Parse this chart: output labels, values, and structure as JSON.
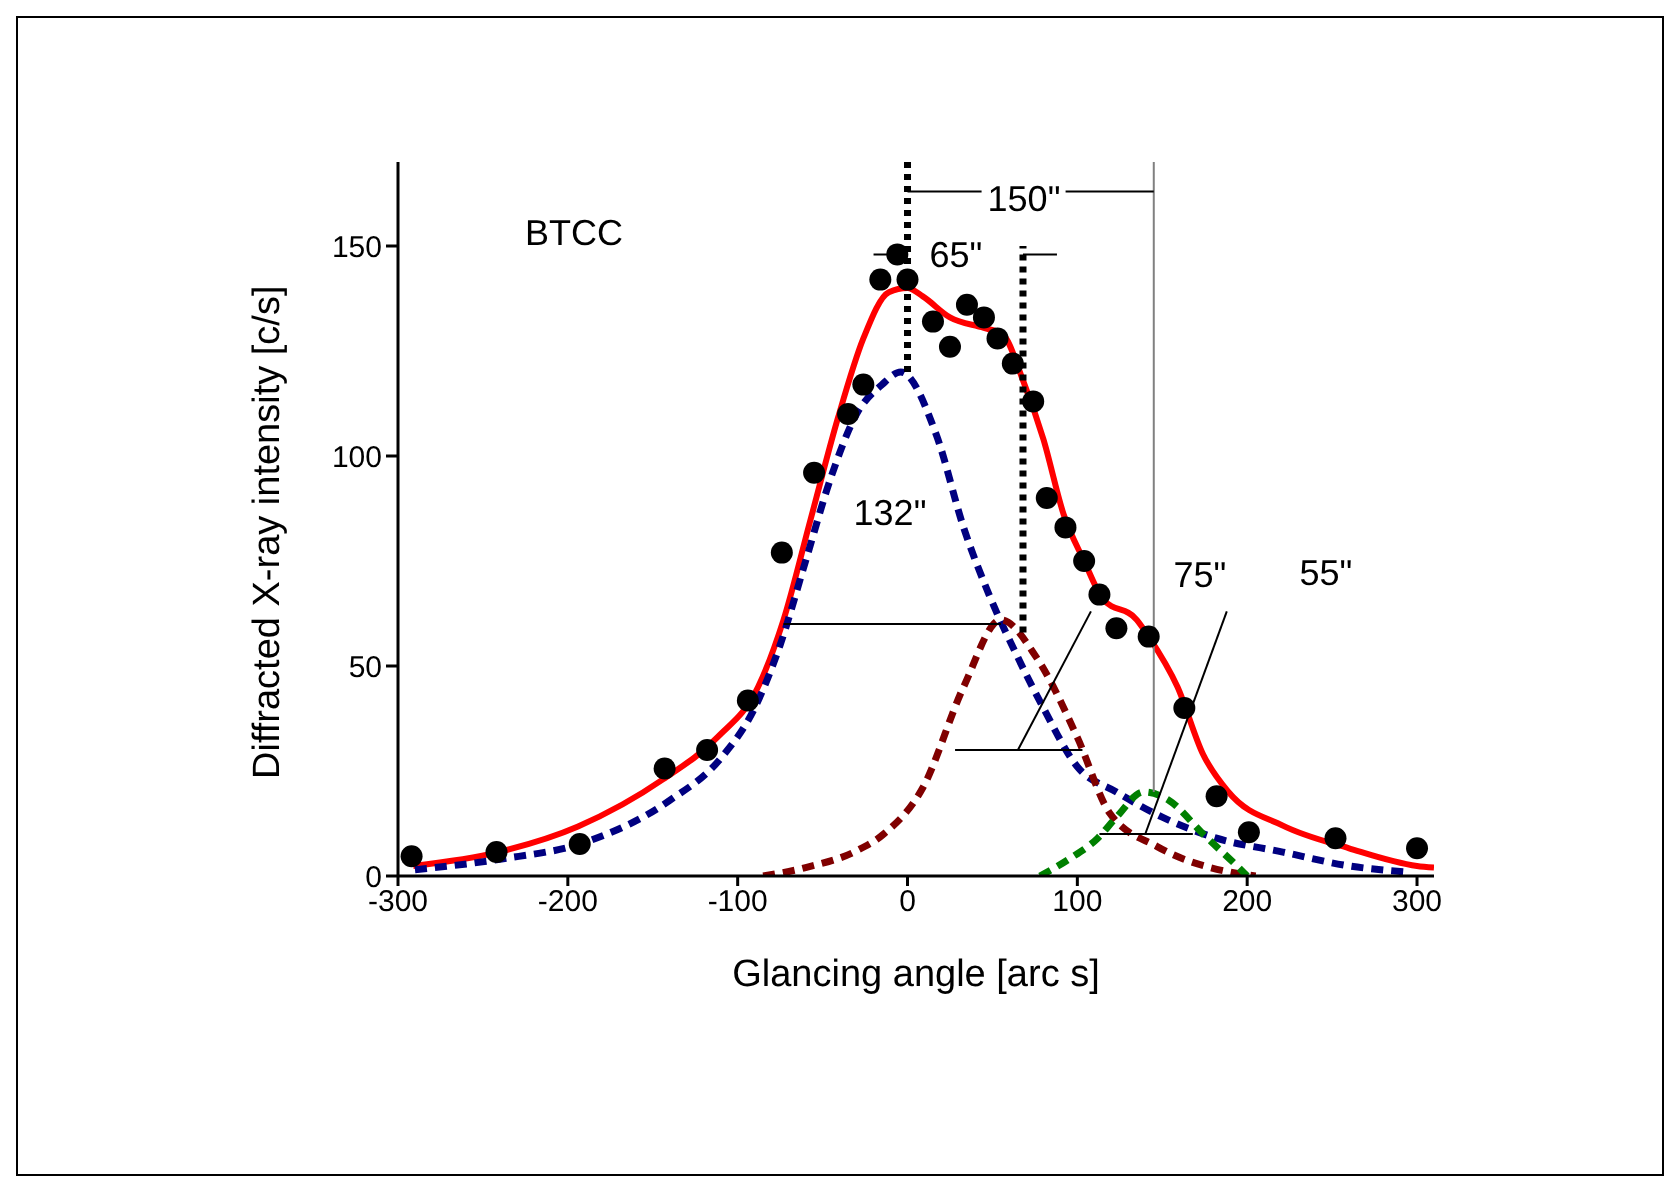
{
  "chart_data": {
    "type": "scatter",
    "xlabel": "Glancing angle [arc s]",
    "ylabel": "Diffracted X-ray intensity [c/s]",
    "xlim": [
      -300,
      310
    ],
    "xticks": [
      -300,
      -200,
      -100,
      0,
      100,
      200,
      300
    ],
    "ylim": [
      0,
      170
    ],
    "yticks": [
      0,
      50,
      100,
      150
    ],
    "grid": false,
    "legend": false,
    "annotations": [
      "BTCC",
      "150\"",
      "65\"",
      "132\"",
      "75\"",
      "55\""
    ],
    "series": [
      {
        "marker": "circle",
        "color": "#000000",
        "x": [
          -292,
          -242,
          -193,
          -143,
          -118,
          -94,
          -74,
          -55,
          -35,
          -26,
          -16,
          -6,
          0,
          15,
          25,
          35,
          45,
          53,
          62,
          74,
          82,
          93,
          104,
          113,
          123,
          142,
          163,
          182,
          201,
          252,
          300
        ],
        "values": [
          4.7,
          5.7,
          7.6,
          25.6,
          30,
          41.8,
          77,
          96,
          110,
          117,
          142,
          148,
          142,
          132,
          126,
          136,
          133,
          128,
          122,
          113,
          90,
          83,
          75,
          67,
          59,
          57,
          40,
          19,
          10.4,
          9,
          6.6
        ]
      },
      {
        "type": "line",
        "marker": "none",
        "line_style": "solid",
        "color": "#ff0000",
        "x": [
          -291,
          -241,
          -194,
          -144,
          -112,
          -88,
          -73,
          -57,
          -41,
          -26,
          -11,
          0,
          9,
          25,
          45,
          56,
          68,
          80,
          92,
          104,
          115,
          135,
          142,
          159,
          174,
          189,
          221,
          260,
          300,
          310
        ],
        "values": [
          2.4,
          5.7,
          11.8,
          23,
          33,
          45,
          61,
          85,
          109,
          128,
          139,
          140,
          138,
          133,
          130.5,
          129,
          118,
          104,
          86,
          75,
          66,
          61,
          57,
          45,
          29,
          20,
          12,
          6.6,
          2.4,
          2
        ]
      },
      {
        "type": "line",
        "marker": "none",
        "line_style": "dashed",
        "color": "#000080",
        "x": [
          -290,
          -240,
          -190,
          -140,
          -110,
          -90,
          -75,
          -60,
          -45,
          -30,
          -15,
          -4,
          17,
          33,
          48,
          65,
          80,
          100,
          123,
          150,
          182,
          221,
          260,
          292
        ],
        "values": [
          1.5,
          4,
          8,
          18,
          28,
          40,
          55,
          75,
          95,
          110,
          117,
          120,
          105,
          83,
          67,
          52,
          40,
          26,
          20,
          14,
          9,
          5.7,
          2.4,
          1
        ]
      },
      {
        "type": "line",
        "marker": "none",
        "line_style": "dashed",
        "color": "#800000",
        "x": [
          -85,
          -60,
          -30,
          -14,
          9,
          33,
          55,
          76,
          100,
          119,
          147,
          189,
          205
        ],
        "values": [
          0,
          2,
          6,
          10,
          21,
          45,
          61,
          52,
          33,
          15,
          7,
          1,
          0
        ]
      },
      {
        "type": "line",
        "marker": "none",
        "line_style": "dashed",
        "color": "#008000",
        "x": [
          78,
          95,
          112,
          123,
          139,
          154,
          174,
          194,
          200
        ],
        "values": [
          0,
          4,
          9,
          14,
          20,
          18,
          10,
          2.4,
          0
        ]
      },
      {
        "type": "line",
        "marker": "none",
        "line_style": "dotted",
        "color": "#000000",
        "x": [
          0,
          0
        ],
        "values": [
          120,
          170
        ]
      },
      {
        "type": "line",
        "marker": "none",
        "line_style": "dotted",
        "color": "#000000",
        "x": [
          68,
          68
        ],
        "values": [
          58,
          150
        ]
      },
      {
        "type": "line",
        "marker": "none",
        "line_style": "solid",
        "color": "#808080",
        "x": [
          145,
          145
        ],
        "values": [
          20,
          170
        ]
      },
      {
        "type": "line",
        "marker": "none",
        "line_style": "solid",
        "color": "#000000",
        "x": [
          0,
          145
        ],
        "values": [
          163,
          163
        ]
      },
      {
        "type": "line",
        "marker": "none",
        "line_style": "solid",
        "color": "#000000",
        "x": [
          -20,
          0
        ],
        "values": [
          148,
          148
        ]
      },
      {
        "type": "line",
        "marker": "none",
        "line_style": "solid",
        "color": "#000000",
        "x": [
          88,
          68
        ],
        "values": [
          148,
          148
        ]
      },
      {
        "type": "line",
        "marker": "none",
        "line_style": "solid",
        "color": "#000000",
        "x": [
          -73,
          55
        ],
        "values": [
          60,
          60
        ]
      },
      {
        "type": "line",
        "marker": "none",
        "line_style": "solid",
        "color": "#000000",
        "x": [
          28,
          103
        ],
        "values": [
          30,
          30
        ]
      },
      {
        "type": "line",
        "marker": "none",
        "line_style": "solid",
        "color": "#000000",
        "x": [
          65,
          108
        ],
        "values": [
          30,
          63
        ]
      },
      {
        "type": "line",
        "marker": "none",
        "line_style": "solid",
        "color": "#000000",
        "x": [
          113,
          168
        ],
        "values": [
          10,
          10
        ]
      },
      {
        "type": "line",
        "marker": "none",
        "line_style": "solid",
        "color": "#000000",
        "x": [
          140,
          188
        ],
        "values": [
          10,
          63
        ]
      }
    ]
  }
}
